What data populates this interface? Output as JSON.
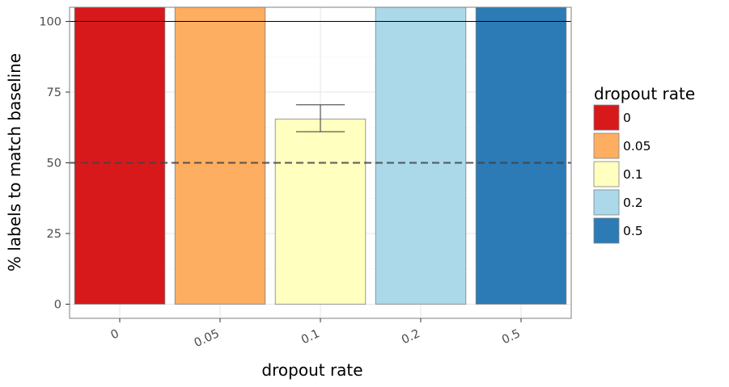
{
  "chart_data": {
    "type": "bar",
    "categories": [
      "0",
      "0.05",
      "0.1",
      "0.2",
      "0.5"
    ],
    "values": [
      105,
      105,
      65.5,
      105,
      105
    ],
    "error_bars": [
      null,
      null,
      [
        61,
        70.5
      ],
      null,
      null
    ],
    "colors": [
      "#d7191c",
      "#fdae61",
      "#ffffbf",
      "#abd9e9",
      "#2c7bb6"
    ],
    "xlabel": "dropout rate",
    "ylabel": "% labels to match baseline",
    "ylim": [
      -5,
      105
    ],
    "yticks": [
      0,
      25,
      50,
      75,
      100
    ],
    "reference_lines": [
      {
        "y": 100,
        "style": "solid",
        "color": "#000000"
      },
      {
        "y": 50,
        "style": "dashed",
        "color": "#444444"
      }
    ],
    "grid": true,
    "legend": {
      "title": "dropout rate",
      "placement": "right",
      "entries": [
        "0",
        "0.05",
        "0.1",
        "0.2",
        "0.5"
      ]
    }
  }
}
